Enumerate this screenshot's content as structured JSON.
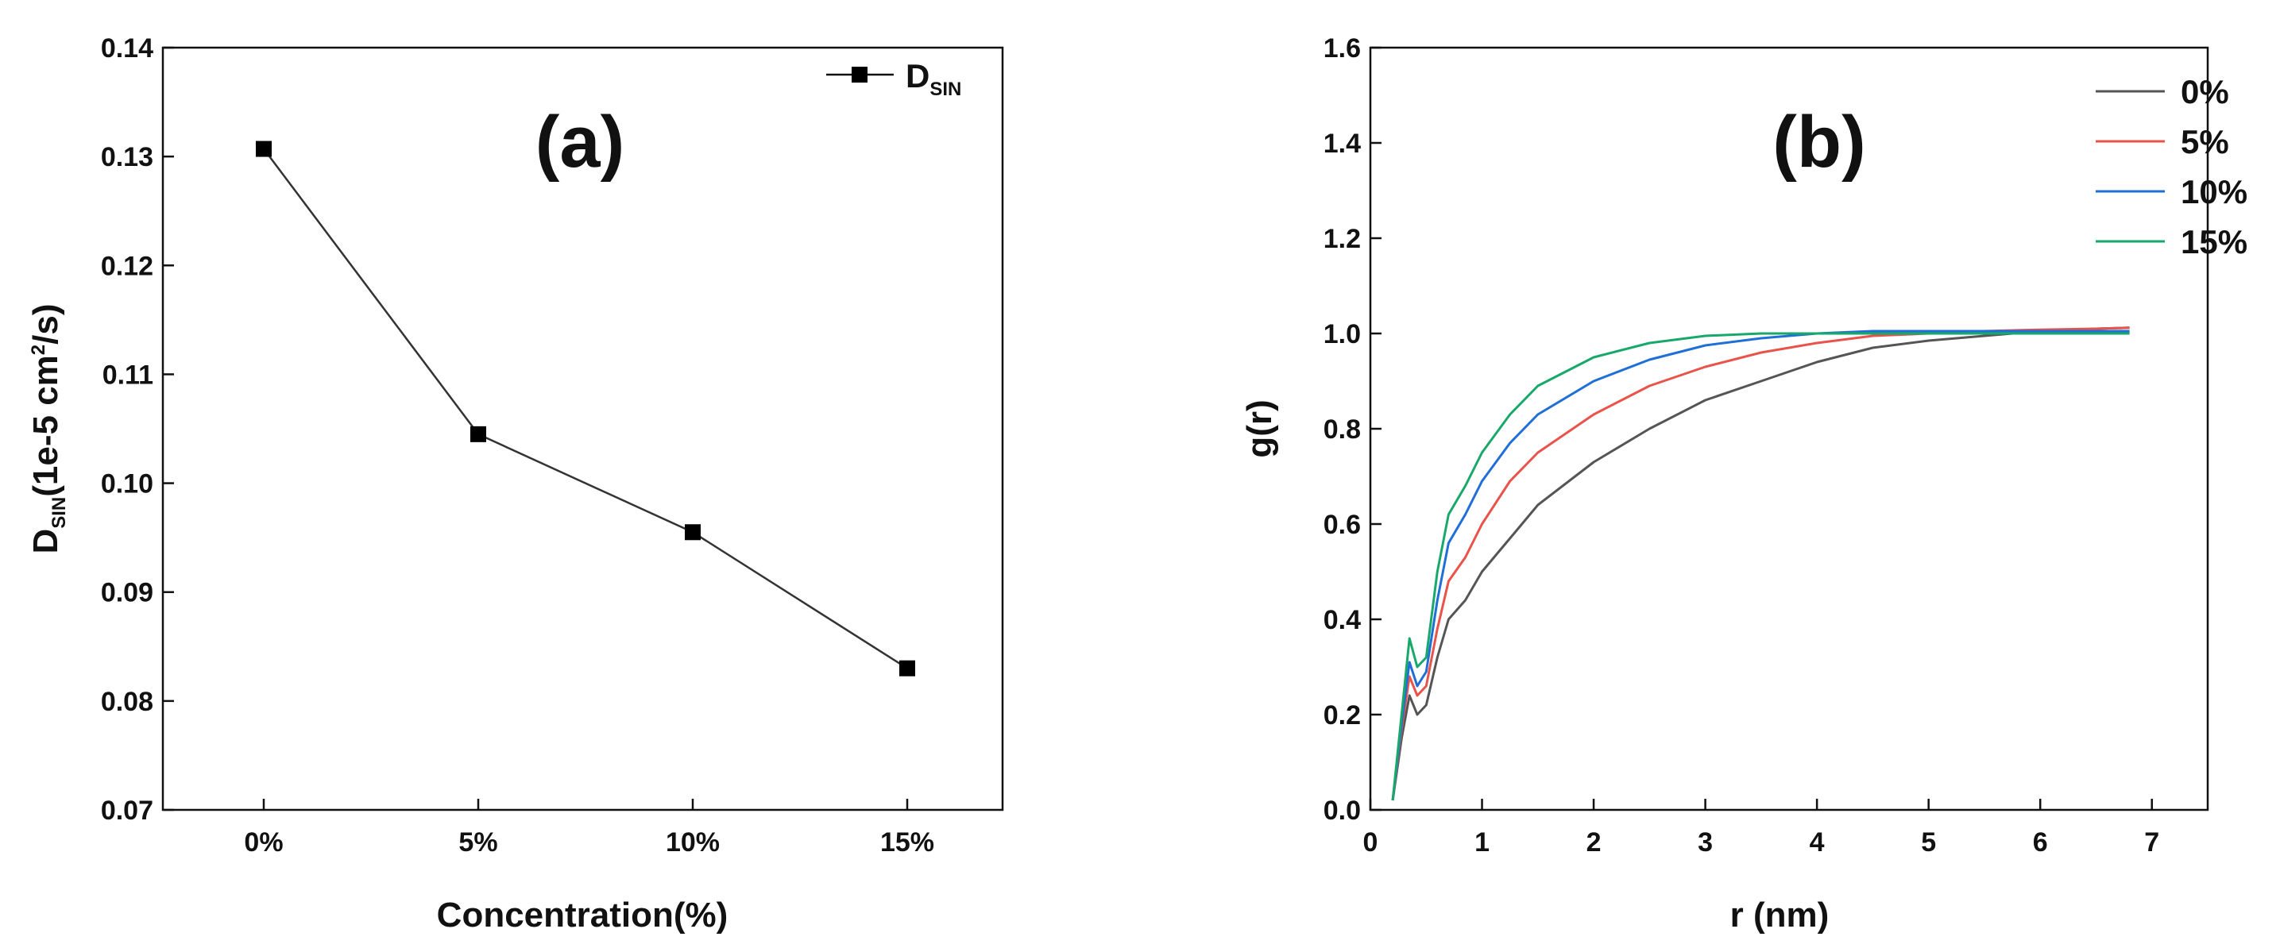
{
  "chart_data": [
    {
      "type": "line",
      "panel_label": "(a)",
      "categories": [
        "0%",
        "5%",
        "10%",
        "15%"
      ],
      "series": [
        {
          "name": "D",
          "name_sub": "SIN",
          "values": [
            0.1307,
            0.1045,
            0.0955,
            0.083
          ],
          "color": "#000000",
          "marker": "square"
        }
      ],
      "xlabel": "Concentration(%)",
      "ylabel": {
        "main": "D",
        "sub": "SIN",
        "rest": "(1e-5 cm",
        "sup": "2",
        "tail": "/s)"
      },
      "ylim": [
        0.07,
        0.14
      ],
      "yticks": [
        0.07,
        0.08,
        0.09,
        0.1,
        0.11,
        0.12,
        0.13,
        0.14
      ],
      "ytick_labels": [
        "0.07",
        "0.08",
        "0.09",
        "0.10",
        "0.11",
        "0.12",
        "0.13",
        "0.14"
      ],
      "legend_position": "top-right"
    },
    {
      "type": "line",
      "panel_label": "(b)",
      "xlabel": "r (nm)",
      "ylabel": "g(r)",
      "xlim": [
        0,
        7.5
      ],
      "ylim": [
        0,
        1.6
      ],
      "xticks": [
        0,
        1,
        2,
        3,
        4,
        5,
        6,
        7
      ],
      "xtick_labels": [
        "0",
        "1",
        "2",
        "3",
        "4",
        "5",
        "6",
        "7"
      ],
      "yticks": [
        0,
        0.2,
        0.4,
        0.6,
        0.8,
        1.0,
        1.2,
        1.4,
        1.6
      ],
      "ytick_labels": [
        "0.0",
        "0.2",
        "0.4",
        "0.6",
        "0.8",
        "1.0",
        "1.2",
        "1.4",
        "1.6"
      ],
      "legend_position": "top-right",
      "series": [
        {
          "name": "0%",
          "color": "#555555",
          "x": [
            0.2,
            0.28,
            0.35,
            0.42,
            0.5,
            0.6,
            0.7,
            0.85,
            1.0,
            1.25,
            1.5,
            2.0,
            2.5,
            3.0,
            3.5,
            4.0,
            4.5,
            5.0,
            5.5,
            6.0,
            6.5,
            6.8
          ],
          "y": [
            0.02,
            0.15,
            0.24,
            0.2,
            0.22,
            0.32,
            0.4,
            0.44,
            0.5,
            0.57,
            0.64,
            0.73,
            0.8,
            0.86,
            0.9,
            0.94,
            0.97,
            0.985,
            0.995,
            1.005,
            1.01,
            1.012
          ]
        },
        {
          "name": "5%",
          "color": "#e8534a",
          "x": [
            0.2,
            0.28,
            0.35,
            0.42,
            0.5,
            0.6,
            0.7,
            0.85,
            1.0,
            1.25,
            1.5,
            2.0,
            2.5,
            3.0,
            3.5,
            4.0,
            4.5,
            5.0,
            5.5,
            6.0,
            6.5,
            6.8
          ],
          "y": [
            0.02,
            0.17,
            0.28,
            0.24,
            0.26,
            0.38,
            0.48,
            0.53,
            0.6,
            0.69,
            0.75,
            0.83,
            0.89,
            0.93,
            0.96,
            0.98,
            0.995,
            1.0,
            1.005,
            1.008,
            1.01,
            1.012
          ]
        },
        {
          "name": "10%",
          "color": "#1f6fd6",
          "x": [
            0.2,
            0.28,
            0.35,
            0.42,
            0.5,
            0.6,
            0.7,
            0.85,
            1.0,
            1.25,
            1.5,
            2.0,
            2.5,
            3.0,
            3.5,
            4.0,
            4.5,
            5.0,
            5.5,
            6.0,
            6.5,
            6.8
          ],
          "y": [
            0.02,
            0.18,
            0.31,
            0.26,
            0.29,
            0.44,
            0.56,
            0.62,
            0.69,
            0.77,
            0.83,
            0.9,
            0.945,
            0.975,
            0.99,
            1.0,
            1.005,
            1.005,
            1.005,
            1.005,
            1.005,
            1.005
          ]
        },
        {
          "name": "15%",
          "color": "#19a86b",
          "x": [
            0.2,
            0.28,
            0.35,
            0.42,
            0.5,
            0.6,
            0.7,
            0.85,
            1.0,
            1.25,
            1.5,
            2.0,
            2.5,
            3.0,
            3.5,
            4.0,
            4.5,
            5.0,
            5.5,
            6.0,
            6.5,
            6.8
          ],
          "y": [
            0.02,
            0.2,
            0.36,
            0.3,
            0.32,
            0.5,
            0.62,
            0.68,
            0.75,
            0.83,
            0.89,
            0.95,
            0.98,
            0.995,
            1.0,
            1.0,
            1.0,
            1.0,
            1.0,
            1.0,
            1.0,
            1.0
          ]
        }
      ]
    }
  ]
}
